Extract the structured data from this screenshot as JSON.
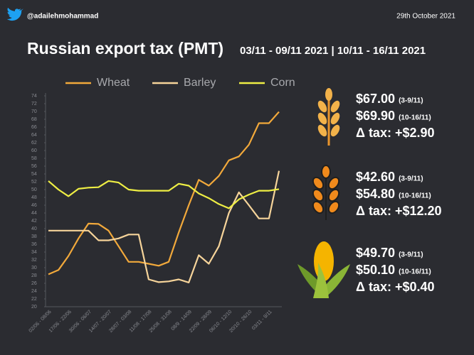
{
  "header": {
    "handle": "@adailehmohammad",
    "date": "29th October 2021"
  },
  "chart_data": {
    "type": "line",
    "title": "Russian export tax (PMT)",
    "subtitle": "03/11 - 09/11 2021 | 10/11 - 16/11 2021",
    "categories": [
      "02/06 - 08/06",
      null,
      "17/06 - 22/06",
      null,
      "30/06 - 06/07",
      null,
      "14/07 - 20/07",
      null,
      "28/07 - 03/08",
      null,
      "11/08 - 17/08",
      null,
      "25/08 - 31/08",
      null,
      "08/9 - 14/09",
      null,
      "22/09 - 28/09",
      null,
      "06/10 - 12/10",
      null,
      "20/10 - 26/10",
      null,
      "03/11 - 9/11",
      null
    ],
    "series": [
      {
        "name": "Wheat",
        "color": "#f2a93b",
        "values": [
          28.3,
          29.4,
          33,
          37.5,
          41.3,
          41.2,
          39.5,
          35.5,
          31.5,
          31.5,
          31,
          30.5,
          31.5,
          39,
          46,
          52.5,
          51,
          53.5,
          57.5,
          58.5,
          61.5,
          67,
          67,
          69.9
        ]
      },
      {
        "name": "Barley",
        "color": "#f6d49a",
        "values": [
          39.5,
          39.5,
          39.5,
          39.5,
          39.5,
          37,
          37,
          37.5,
          38.5,
          38.5,
          27,
          26.3,
          26.5,
          27,
          26.2,
          33.2,
          31,
          35.5,
          44,
          49.3,
          46,
          42.6,
          42.6,
          54.8
        ]
      },
      {
        "name": "Corn",
        "color": "#eeee44",
        "values": [
          52.2,
          50,
          48.3,
          50.2,
          50.5,
          50.6,
          52.2,
          51.8,
          50,
          49.7,
          49.7,
          49.7,
          49.7,
          51.5,
          51,
          49,
          47.8,
          46.3,
          45.2,
          47.5,
          48.7,
          49.7,
          49.7,
          50.1
        ]
      }
    ],
    "ylim": [
      20,
      74
    ],
    "yticks": [
      20,
      22,
      24,
      26,
      28,
      30,
      32,
      34,
      36,
      38,
      40,
      42,
      44,
      46,
      48,
      50,
      52,
      54,
      56,
      58,
      60,
      62,
      64,
      66,
      68,
      70,
      72,
      74
    ],
    "grid": false
  },
  "panel": [
    {
      "price1": "$67.00",
      "period1": "(3-9/11)",
      "price2": "$69.90",
      "period2": "(10-16/11)",
      "delta": "Δ tax: +$2.90"
    },
    {
      "price1": "$42.60",
      "period1": "(3-9/11)",
      "price2": "$54.80",
      "period2": "(10-16/11)",
      "delta": "Δ tax: +$12.20"
    },
    {
      "price1": "$49.70",
      "period1": "(3-9/11)",
      "price2": "$50.10",
      "period2": "(10-16/11)",
      "delta": "Δ tax: +$0.40"
    }
  ]
}
